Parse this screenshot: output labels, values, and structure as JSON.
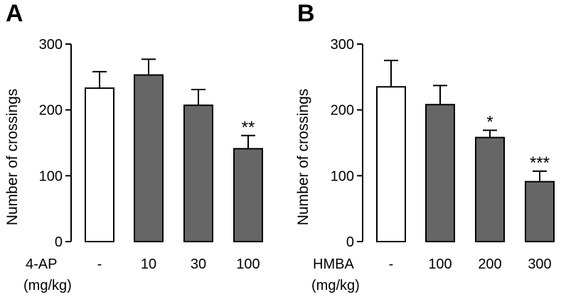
{
  "chart_data": [
    {
      "type": "bar",
      "panel_label": "A",
      "xlabel": "4-AP",
      "xlabel_unit": "(mg/kg)",
      "ylabel": "Number of crossings",
      "ylim": [
        0,
        300
      ],
      "yticks": [
        0,
        100,
        200,
        300
      ],
      "categories": [
        "-",
        "10",
        "30",
        "100"
      ],
      "values": [
        233,
        253,
        207,
        141
      ],
      "errors": [
        25,
        24,
        24,
        20
      ],
      "bar_fill": [
        "#ffffff",
        "#666666",
        "#666666",
        "#666666"
      ],
      "significance": [
        "",
        "",
        "",
        "**"
      ],
      "grid": false,
      "legend": "none"
    },
    {
      "type": "bar",
      "panel_label": "B",
      "xlabel": "HMBA",
      "xlabel_unit": "(mg/kg)",
      "ylabel": "Number of crossings",
      "ylim": [
        0,
        300
      ],
      "yticks": [
        0,
        100,
        200,
        300
      ],
      "categories": [
        "-",
        "100",
        "200",
        "300"
      ],
      "values": [
        235,
        208,
        158,
        91
      ],
      "errors": [
        40,
        29,
        11,
        16
      ],
      "bar_fill": [
        "#ffffff",
        "#666666",
        "#666666",
        "#666666"
      ],
      "significance": [
        "",
        "",
        "*",
        "***"
      ],
      "grid": false,
      "legend": "none"
    }
  ]
}
